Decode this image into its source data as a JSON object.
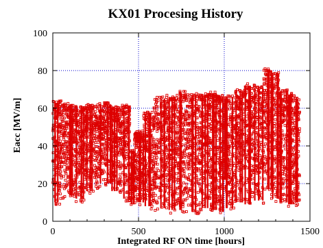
{
  "chart_data": {
    "type": "scatter",
    "title": "KX01 Procesing History",
    "xlabel": "Integrated RF ON time [hours]",
    "ylabel": "Eacc [MV/m]",
    "xlim": [
      0,
      1500
    ],
    "ylim": [
      0,
      100
    ],
    "x_ticks": [
      0,
      500,
      1000,
      1500
    ],
    "y_ticks": [
      0,
      20,
      40,
      60,
      80,
      100
    ],
    "grid": true,
    "grid_style": "dotted",
    "grid_color": "#0000cc",
    "marker": "open-square",
    "marker_color": "#dd0000",
    "series": [
      {
        "segments": [
          {
            "x": [
              0,
              60
            ],
            "ymin": 8,
            "ymax": 64
          },
          {
            "x": [
              60,
              120
            ],
            "ymin": 12,
            "ymax": 63
          },
          {
            "x": [
              120,
              190
            ],
            "ymin": 10,
            "ymax": 62
          },
          {
            "x": [
              190,
              270
            ],
            "ymin": 14,
            "ymax": 62
          },
          {
            "x": [
              270,
              340
            ],
            "ymin": 18,
            "ymax": 63
          },
          {
            "x": [
              340,
              395
            ],
            "ymin": 14,
            "ymax": 61
          },
          {
            "x": [
              395,
              450
            ],
            "ymin": 10,
            "ymax": 62
          },
          {
            "x": [
              455,
              475
            ],
            "ymin": 7,
            "ymax": 38
          },
          {
            "x": [
              475,
              530
            ],
            "ymin": 8,
            "ymax": 48
          },
          {
            "x": [
              530,
              590
            ],
            "ymin": 6,
            "ymax": 58
          },
          {
            "x": [
              590,
              660
            ],
            "ymin": 5,
            "ymax": 66
          },
          {
            "x": [
              660,
              740
            ],
            "ymin": 4,
            "ymax": 67
          },
          {
            "x": [
              740,
              800
            ],
            "ymin": 4,
            "ymax": 69
          },
          {
            "x": [
              800,
              860
            ],
            "ymin": 3,
            "ymax": 68
          },
          {
            "x": [
              860,
              915
            ],
            "ymin": 5,
            "ymax": 68
          },
          {
            "x": [
              915,
              955
            ],
            "ymin": 4,
            "ymax": 69
          },
          {
            "x": [
              955,
              995
            ],
            "ymin": 3,
            "ymax": 67
          },
          {
            "x": [
              1000,
              1010
            ],
            "ymin": 20,
            "ymax": 66
          },
          {
            "x": [
              1010,
              1065
            ],
            "ymin": 5,
            "ymax": 67
          },
          {
            "x": [
              1065,
              1120
            ],
            "ymin": 8,
            "ymax": 70
          },
          {
            "x": [
              1120,
              1175
            ],
            "ymin": 7,
            "ymax": 73
          },
          {
            "x": [
              1175,
              1230
            ],
            "ymin": 9,
            "ymax": 72
          },
          {
            "x": [
              1230,
              1275
            ],
            "ymin": 15,
            "ymax": 81
          },
          {
            "x": [
              1275,
              1320
            ],
            "ymin": 10,
            "ymax": 79
          },
          {
            "x": [
              1320,
              1370
            ],
            "ymin": 8,
            "ymax": 70
          },
          {
            "x": [
              1370,
              1410
            ],
            "ymin": 7,
            "ymax": 68
          },
          {
            "x": [
              1410,
              1440
            ],
            "ymin": 8,
            "ymax": 66
          }
        ]
      }
    ]
  }
}
